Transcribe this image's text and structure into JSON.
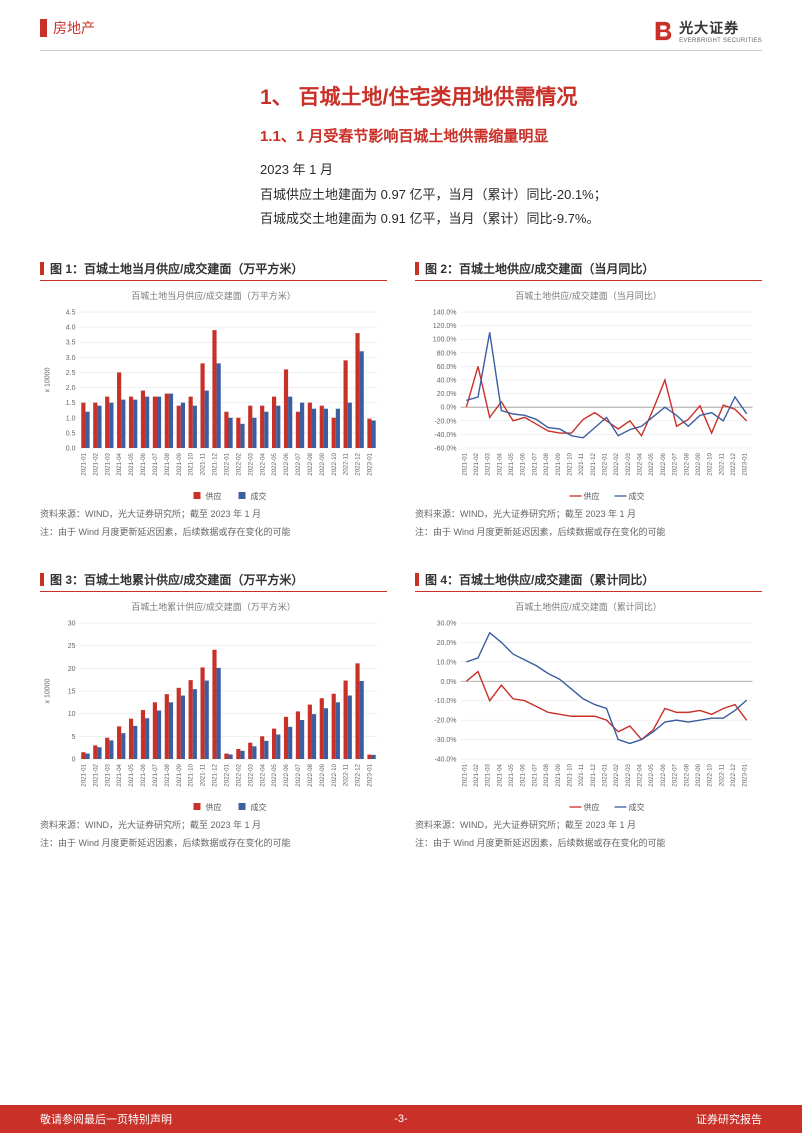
{
  "header": {
    "category": "房地产",
    "logo_cn": "光大证券",
    "logo_en": "EVERBRIGHT SECURITIES"
  },
  "section": {
    "h1": "1、 百城土地/住宅类用地供需情况",
    "h2": "1.1、1 月受春节影响百城土地供需缩量明显",
    "p1": "2023 年 1 月",
    "p2": "百城供应土地建面为 0.97 亿平，当月（累计）同比-20.1%；",
    "p3": "百城成交土地建面为 0.91 亿平，当月（累计）同比-9.7%。"
  },
  "months": [
    "2021-01",
    "2021-02",
    "2021-03",
    "2021-04",
    "2021-05",
    "2021-06",
    "2021-07",
    "2021-08",
    "2021-09",
    "2021-10",
    "2021-11",
    "2021-12",
    "2022-01",
    "2022-02",
    "2022-03",
    "2022-04",
    "2022-05",
    "2022-06",
    "2022-07",
    "2022-08",
    "2022-09",
    "2022-10",
    "2022-11",
    "2022-12",
    "2023-01"
  ],
  "common": {
    "supply_color": "#c83028",
    "deal_color": "#3b5ea0",
    "grid_color": "#e0e0e0",
    "axis_color": "#888",
    "tick_fontsize": 7,
    "ylabel_x10000": "x 10000",
    "legend_supply": "供应",
    "legend_deal": "成交",
    "source_line1": "资料来源：WIND，光大证券研究所；截至 2023 年 1 月",
    "source_line2": "注：由于 Wind 月度更新延迟因素，后续数据或存在变化的可能"
  },
  "chart1": {
    "title": "图 1：百城土地当月供应/成交建面（万平方米）",
    "subtitle": "百城土地当月供应/成交建面（万平方米）",
    "type": "grouped-bar",
    "ylim": [
      0,
      4.5
    ],
    "ytick_step": 0.5,
    "supply": [
      1.5,
      1.5,
      1.7,
      2.5,
      1.7,
      1.9,
      1.7,
      1.8,
      1.4,
      1.7,
      2.8,
      3.9,
      1.2,
      1.0,
      1.4,
      1.4,
      1.7,
      2.6,
      1.2,
      1.5,
      1.4,
      1.0,
      2.9,
      3.8,
      0.97
    ],
    "deal": [
      1.2,
      1.4,
      1.5,
      1.6,
      1.6,
      1.7,
      1.7,
      1.8,
      1.5,
      1.4,
      1.9,
      2.8,
      1.0,
      0.8,
      1.0,
      1.2,
      1.4,
      1.7,
      1.5,
      1.3,
      1.3,
      1.3,
      1.5,
      3.2,
      0.91
    ]
  },
  "chart2": {
    "title": "图 2：百城土地供应/成交建面（当月同比）",
    "subtitle": "百城土地供应/成交建面（当月同比）",
    "type": "line",
    "ylim": [
      -60,
      140
    ],
    "ytick_step": 20,
    "pct": true,
    "supply": [
      0,
      60,
      -15,
      8,
      -20,
      -15,
      -25,
      -35,
      -38,
      -38,
      -18,
      -8,
      -20,
      -32,
      -20,
      -42,
      -3,
      40,
      -28,
      -18,
      2,
      -38,
      3,
      -3,
      -20.1
    ],
    "deal": [
      10,
      15,
      110,
      -5,
      -10,
      -12,
      -18,
      -30,
      -32,
      -42,
      -45,
      -30,
      -15,
      -42,
      -33,
      -28,
      -14,
      0,
      -12,
      -28,
      -12,
      -8,
      -20,
      15,
      -9.7
    ]
  },
  "chart3": {
    "title": "图 3：百城土地累计供应/成交建面（万平方米）",
    "subtitle": "百城土地累计供应/成交建面（万平方米）",
    "type": "grouped-bar",
    "ylim": [
      0,
      30
    ],
    "ytick_step": 5,
    "supply": [
      1.5,
      3.0,
      4.7,
      7.2,
      8.9,
      10.8,
      12.5,
      14.3,
      15.7,
      17.4,
      20.2,
      24.1,
      1.2,
      2.2,
      3.6,
      5.0,
      6.7,
      9.3,
      10.5,
      12.0,
      13.4,
      14.4,
      17.3,
      21.1,
      0.97
    ],
    "deal": [
      1.2,
      2.6,
      4.1,
      5.7,
      7.3,
      9.0,
      10.7,
      12.5,
      14.0,
      15.4,
      17.3,
      20.1,
      1.0,
      1.8,
      2.8,
      4.0,
      5.4,
      7.1,
      8.6,
      9.9,
      11.2,
      12.5,
      14.0,
      17.2,
      0.91
    ]
  },
  "chart4": {
    "title": "图 4：百城土地供应/成交建面（累计同比）",
    "subtitle": "百城土地供应/成交建面（累计同比）",
    "type": "line",
    "ylim": [
      -40,
      30
    ],
    "ytick_step": 10,
    "pct": true,
    "supply": [
      0,
      5,
      -10,
      -2,
      -9,
      -10,
      -13,
      -16,
      -17,
      -18,
      -18,
      -18,
      -20,
      -26,
      -23,
      -30,
      -25,
      -14,
      -16,
      -16,
      -15,
      -17,
      -14,
      -12,
      -20.1
    ],
    "deal": [
      10,
      12,
      25,
      20,
      14,
      11,
      8,
      4,
      1,
      -4,
      -9,
      -12,
      -14,
      -30,
      -32,
      -30,
      -26,
      -21,
      -20,
      -21,
      -20,
      -19,
      -19,
      -15,
      -9.7
    ]
  },
  "footer": {
    "left": "敬请参阅最后一页特别声明",
    "center": "-3-",
    "right": "证券研究报告"
  }
}
